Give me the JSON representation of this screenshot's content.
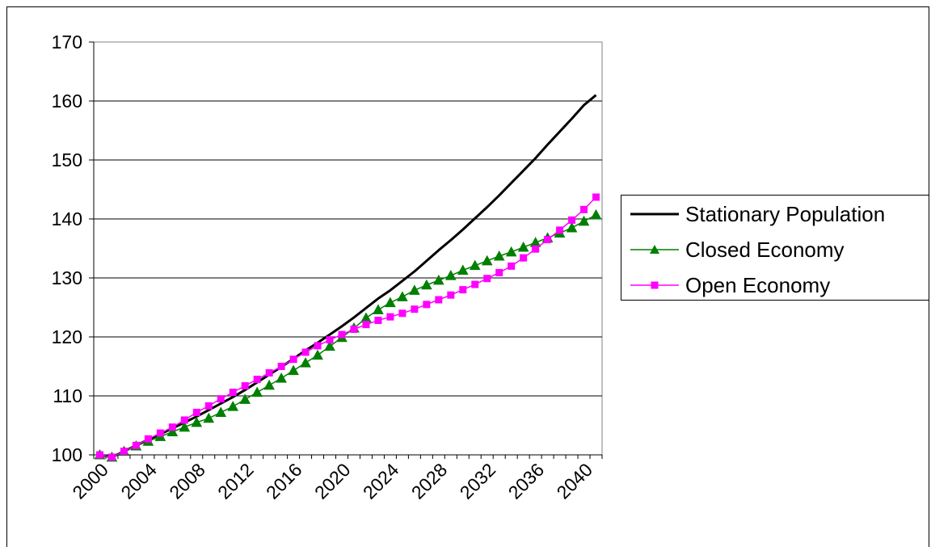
{
  "chart_data": {
    "type": "line",
    "title": "",
    "xlabel": "",
    "ylabel": "",
    "xlim": [
      2000,
      2041
    ],
    "ylim": [
      100,
      170
    ],
    "x_ticks": [
      "2000",
      "2004",
      "2008",
      "2012",
      "2016",
      "2020",
      "2024",
      "2028",
      "2032",
      "2036",
      "2040"
    ],
    "y_ticks": [
      "100",
      "110",
      "120",
      "130",
      "140",
      "150",
      "160",
      "170"
    ],
    "grid": "horizontal",
    "legend_position": "right",
    "x": [
      2000,
      2001,
      2002,
      2003,
      2004,
      2005,
      2006,
      2007,
      2008,
      2009,
      2010,
      2011,
      2012,
      2013,
      2014,
      2015,
      2016,
      2017,
      2018,
      2019,
      2020,
      2021,
      2022,
      2023,
      2024,
      2025,
      2026,
      2027,
      2028,
      2029,
      2030,
      2031,
      2032,
      2033,
      2034,
      2035,
      2036,
      2037,
      2038,
      2039,
      2040,
      2041
    ],
    "series": [
      {
        "name": "Stationary Population",
        "color": "#000000",
        "marker": "none",
        "values": [
          100.0,
          99.6,
          100.6,
          101.6,
          102.6,
          103.5,
          104.5,
          105.5,
          106.5,
          107.6,
          108.7,
          109.8,
          111.0,
          112.3,
          113.6,
          114.9,
          116.3,
          117.7,
          119.0,
          120.4,
          121.8,
          123.3,
          124.9,
          126.5,
          127.9,
          129.5,
          131.1,
          132.9,
          134.7,
          136.4,
          138.2,
          140.1,
          142.0,
          144.0,
          146.1,
          148.2,
          150.3,
          152.6,
          154.8,
          157.0,
          159.3,
          161.0
        ]
      },
      {
        "name": "Closed Economy",
        "color": "#007F00",
        "marker": "triangle",
        "values": [
          100.0,
          99.6,
          100.6,
          101.5,
          102.3,
          103.1,
          103.9,
          104.7,
          105.5,
          106.2,
          107.2,
          108.2,
          109.4,
          110.6,
          111.8,
          113.0,
          114.3,
          115.6,
          116.9,
          118.4,
          119.9,
          121.5,
          123.2,
          124.6,
          125.8,
          126.8,
          127.9,
          128.8,
          129.6,
          130.4,
          131.3,
          132.1,
          132.9,
          133.7,
          134.4,
          135.2,
          136.0,
          136.8,
          137.6,
          138.5,
          139.6,
          140.7
        ]
      },
      {
        "name": "Open Economy",
        "color": "#FF00FF",
        "marker": "square",
        "values": [
          100.0,
          99.6,
          100.6,
          101.6,
          102.7,
          103.7,
          104.7,
          105.9,
          107.2,
          108.3,
          109.5,
          110.6,
          111.7,
          112.8,
          113.9,
          115.0,
          116.2,
          117.4,
          118.5,
          119.5,
          120.4,
          121.3,
          122.1,
          122.8,
          123.4,
          124.0,
          124.7,
          125.5,
          126.3,
          127.1,
          128.0,
          128.9,
          129.9,
          130.9,
          132.0,
          133.4,
          134.9,
          136.5,
          138.1,
          139.8,
          141.6,
          143.7
        ]
      }
    ]
  }
}
